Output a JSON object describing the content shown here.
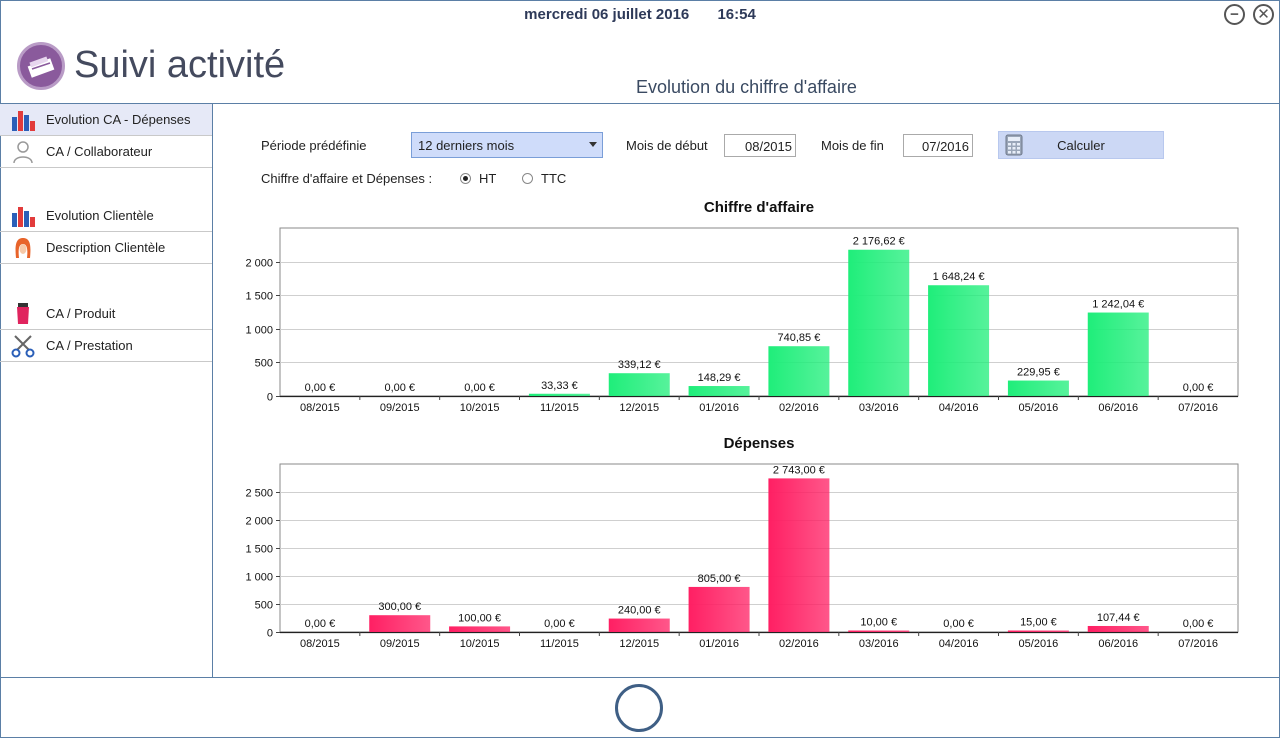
{
  "header": {
    "date": "mercredi 06 juillet 2016",
    "time": "16:54",
    "app_title": "Suivi activité",
    "page_title": "Evolution du chiffre d'affaire"
  },
  "window_controls": {
    "minimize_icon": "minus-circle-icon",
    "close_icon": "close-circle-icon"
  },
  "sidebar": {
    "items": [
      {
        "label": "Evolution CA - Dépenses",
        "icon": "bar-chart-icon",
        "active": true
      },
      {
        "label": "CA / Collaborateur",
        "icon": "user-icon"
      },
      {
        "label": "Evolution Clientèle",
        "icon": "bar-chart-icon"
      },
      {
        "label": "Description Clientèle",
        "icon": "woman-hair-icon"
      },
      {
        "label": "CA / Produit",
        "icon": "product-tube-icon"
      },
      {
        "label": "CA / Prestation",
        "icon": "scissors-icon"
      }
    ]
  },
  "controls": {
    "period_label": "Période prédéfinie",
    "period_value": "12 derniers mois",
    "start_label": "Mois de début",
    "start_value": "08/2015",
    "end_label": "Mois de fin",
    "end_value": "07/2016",
    "calc_label": "Calculer",
    "calc_icon": "calculator-icon",
    "tax_label": "Chiffre d'affaire et Dépenses :",
    "ht_label": "HT",
    "ttc_label": "TTC",
    "tax_selected": "HT"
  },
  "chart_data": [
    {
      "type": "bar",
      "title": "Chiffre d'affaire",
      "color": "#1fee7a",
      "categories": [
        "08/2015",
        "09/2015",
        "10/2015",
        "11/2015",
        "12/2015",
        "01/2016",
        "02/2016",
        "03/2016",
        "04/2016",
        "05/2016",
        "06/2016",
        "07/2016"
      ],
      "values": [
        0,
        0,
        0,
        33.33,
        339.12,
        148.29,
        740.85,
        2176.62,
        1648.24,
        229.95,
        1242.04,
        0
      ],
      "value_labels": [
        "0,00 €",
        "0,00 €",
        "0,00 €",
        "33,33 €",
        "339,12 €",
        "148,29 €",
        "740,85 €",
        "2 176,62 €",
        "1 648,24 €",
        "229,95 €",
        "1 242,04 €",
        "0,00 €"
      ],
      "yticks": [
        0,
        500,
        1000,
        1500,
        2000
      ],
      "ytick_labels": [
        "0",
        "500",
        "1 000",
        "1 500",
        "2 000"
      ],
      "ylim": [
        0,
        2500
      ],
      "grid": true
    },
    {
      "type": "bar",
      "title": "Dépenses",
      "color": "#ff1f63",
      "categories": [
        "08/2015",
        "09/2015",
        "10/2015",
        "11/2015",
        "12/2015",
        "01/2016",
        "02/2016",
        "03/2016",
        "04/2016",
        "05/2016",
        "06/2016",
        "07/2016"
      ],
      "values": [
        0,
        300,
        100,
        0,
        240,
        805,
        2743,
        10,
        0,
        15,
        107.44,
        0
      ],
      "value_labels": [
        "0,00 €",
        "300,00 €",
        "100,00 €",
        "0,00 €",
        "240,00 €",
        "805,00 €",
        "2 743,00 €",
        "10,00 €",
        "0,00 €",
        "15,00 €",
        "107,44 €",
        "0,00 €"
      ],
      "yticks": [
        0,
        500,
        1000,
        1500,
        2000,
        2500
      ],
      "ytick_labels": [
        "0",
        "500",
        "1 000",
        "1 500",
        "2 000",
        "2 500"
      ],
      "ylim": [
        0,
        3000
      ],
      "grid": true
    }
  ]
}
